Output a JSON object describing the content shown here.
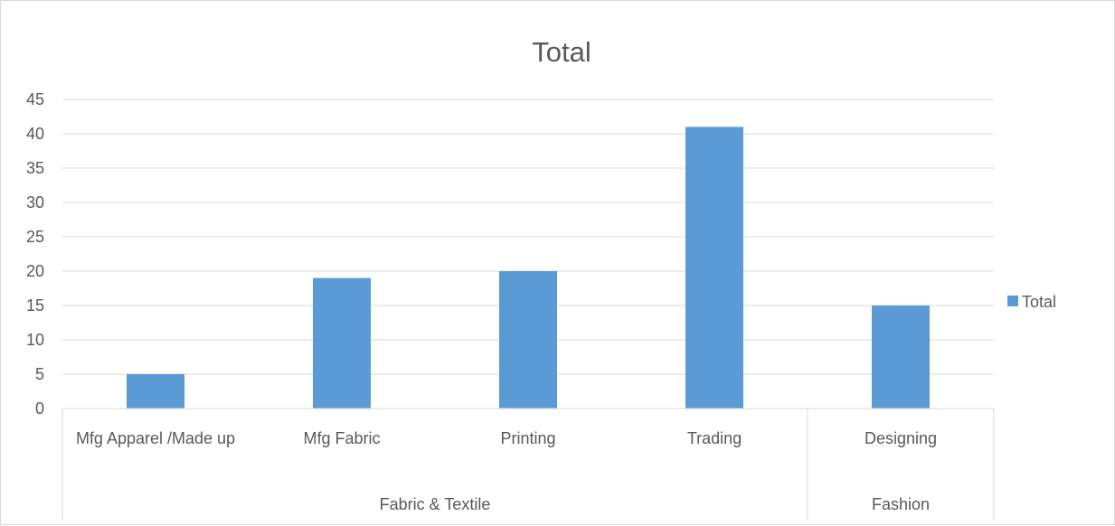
{
  "chart_data": {
    "type": "bar",
    "title": "Total",
    "categories": [
      "Mfg Apparel /Made up",
      "Mfg Fabric",
      "Printing",
      "Trading",
      "Designing"
    ],
    "groups": [
      {
        "label": "Fabric & Textile",
        "categories": [
          "Mfg Apparel /Made up",
          "Mfg Fabric",
          "Printing",
          "Trading"
        ]
      },
      {
        "label": "Fashion",
        "categories": [
          "Designing"
        ]
      }
    ],
    "series": [
      {
        "name": "Total",
        "values": [
          5,
          19,
          20,
          41,
          15
        ],
        "color": "#5b9bd5"
      }
    ],
    "ylim": [
      0,
      45
    ],
    "yticks": [
      0,
      5,
      10,
      15,
      20,
      25,
      30,
      35,
      40,
      45
    ],
    "xlabel": "",
    "ylabel": "",
    "grid": true,
    "legend_position": "right"
  }
}
